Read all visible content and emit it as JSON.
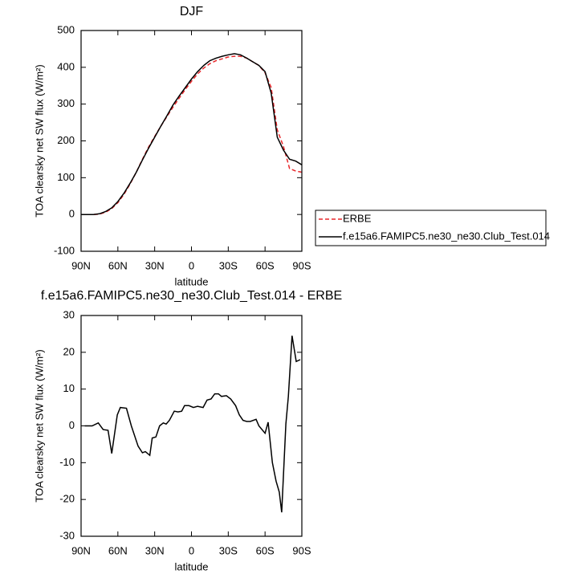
{
  "chart_data": [
    {
      "type": "line",
      "title": "DJF",
      "xlabel": "latitude",
      "ylabel": "TOA clearsky net SW flux (W/m²)",
      "xlim": [
        90,
        -90
      ],
      "xticks": [
        {
          "value": 90,
          "label": "90N"
        },
        {
          "value": 60,
          "label": "60N"
        },
        {
          "value": 30,
          "label": "30N"
        },
        0,
        {
          "value": -30,
          "label": "30S"
        },
        {
          "value": -60,
          "label": "60S"
        },
        {
          "value": -90,
          "label": "90S"
        }
      ],
      "ylim": [
        -100,
        500
      ],
      "yticks": [
        -100,
        0,
        100,
        200,
        300,
        400,
        500
      ],
      "legend": "right",
      "series": [
        {
          "name": "ERBE",
          "color": "#e8272a",
          "dash": true,
          "x": [
            90,
            85,
            80,
            75,
            70,
            65,
            60,
            55,
            50,
            45,
            40,
            35,
            30,
            25,
            20,
            15,
            10,
            5,
            0,
            -5,
            -10,
            -15,
            -20,
            -25,
            -30,
            -35,
            -40,
            -45,
            -50,
            -55,
            -60,
            -65,
            -70,
            -75,
            -80,
            -85,
            -90
          ],
          "values": [
            0,
            0,
            0,
            1,
            6,
            16,
            32,
            55,
            83,
            115,
            150,
            183,
            212,
            240,
            266,
            292,
            316,
            340,
            362,
            382,
            398,
            410,
            418,
            423,
            428,
            430,
            430,
            425,
            415,
            405,
            385,
            345,
            230,
            185,
            125,
            118,
            115
          ]
        },
        {
          "name": "f.e15a6.FAMIPC5.ne30_ne30.Club_Test.014",
          "color": "#000000",
          "dash": false,
          "x": [
            90,
            85,
            80,
            75,
            70,
            65,
            60,
            55,
            50,
            45,
            40,
            35,
            30,
            25,
            20,
            15,
            10,
            5,
            0,
            -5,
            -10,
            -15,
            -20,
            -25,
            -30,
            -35,
            -40,
            -45,
            -50,
            -55,
            -60,
            -65,
            -70,
            -75,
            -80,
            -85,
            -90
          ],
          "values": [
            0,
            0,
            0,
            2,
            8,
            18,
            35,
            58,
            85,
            115,
            148,
            180,
            210,
            240,
            268,
            298,
            322,
            345,
            368,
            388,
            405,
            418,
            425,
            430,
            434,
            437,
            434,
            425,
            415,
            405,
            388,
            330,
            210,
            175,
            150,
            145,
            135
          ]
        }
      ]
    },
    {
      "type": "line",
      "title": "f.e15a6.FAMIPC5.ne30_ne30.Club_Test.014 - ERBE",
      "xlabel": "latitude",
      "ylabel": "TOA clearsky net SW flux (W/m²)",
      "xlim": [
        90,
        -90
      ],
      "xticks": [
        {
          "value": 90,
          "label": "90N"
        },
        {
          "value": 60,
          "label": "60N"
        },
        {
          "value": 30,
          "label": "30N"
        },
        0,
        {
          "value": -30,
          "label": "30S"
        },
        {
          "value": -60,
          "label": "60S"
        },
        {
          "value": -90,
          "label": "90S"
        }
      ],
      "ylim": [
        -30,
        30
      ],
      "yticks": [
        -30,
        -20,
        -10,
        0,
        10,
        20,
        30
      ],
      "series": [
        {
          "color": "#000000",
          "dash": false,
          "x": [
            87,
            81,
            76,
            72,
            68,
            65,
            60.5,
            58,
            53,
            49,
            43.5,
            40,
            37.6,
            34,
            32,
            29,
            26,
            23,
            20.6,
            18,
            14,
            11,
            8,
            5.6,
            2,
            -1.6,
            -5,
            -9.5,
            -12.7,
            -16,
            -19,
            -22,
            -24.5,
            -28.5,
            -32,
            -36,
            -39,
            -42,
            -45,
            -48,
            -52.7,
            -55,
            -60,
            -62.5,
            -66,
            -69,
            -71.6,
            -73.6,
            -77,
            -79,
            -82,
            -85.4,
            -88.7
          ],
          "values": [
            0,
            0,
            0.8,
            -1,
            -1.2,
            -7.5,
            3,
            5,
            4.8,
            0,
            -5.5,
            -7.3,
            -7,
            -8,
            -3.3,
            -3,
            0,
            0.8,
            0.5,
            1.5,
            4,
            3.8,
            4,
            5.5,
            5.5,
            5,
            5.3,
            5,
            7,
            7.3,
            8.7,
            8.7,
            8,
            8.2,
            7.3,
            5.5,
            3,
            1.5,
            1.2,
            1.2,
            1.8,
            0,
            -2,
            1,
            -10,
            -15,
            -18,
            -23.5,
            0.5,
            8,
            24.5,
            17.5,
            18
          ]
        }
      ]
    }
  ]
}
